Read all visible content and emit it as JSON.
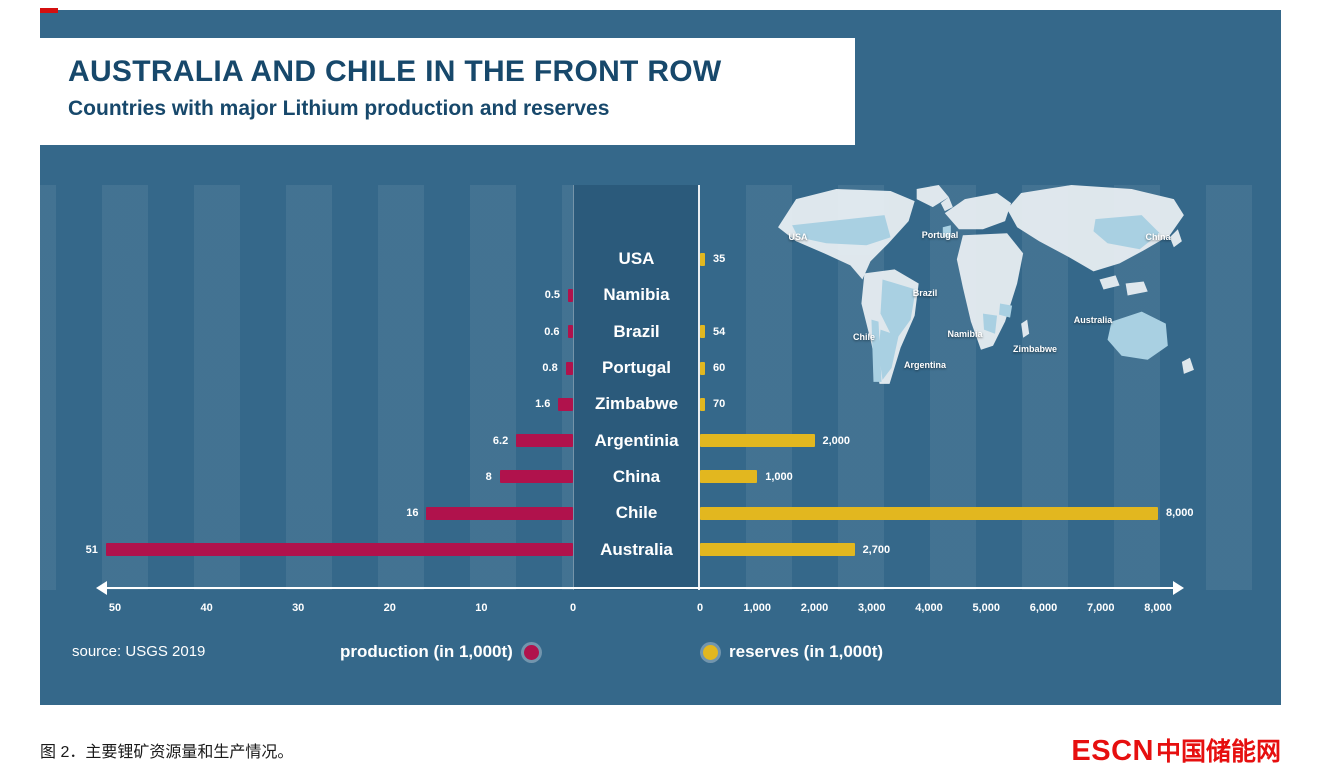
{
  "colors": {
    "panel_bg": "#35688a",
    "title_text": "#17486b",
    "production": "#b0124c",
    "reserves": "#e2b71f",
    "map_land": "#e9eff3",
    "map_highlight": "#a9d0e2",
    "logo_red": "#e60f0f"
  },
  "header": {
    "title": "AUSTRALIA AND CHILE IN THE FRONT ROW",
    "subtitle": "Countries with major Lithium production and reserves"
  },
  "chart_data": {
    "type": "bar",
    "variant": "bidirectional-horizontal",
    "categories": [
      "USA",
      "Namibia",
      "Brazil",
      "Portugal",
      "Zimbabwe",
      "Argentinia",
      "China",
      "Chile",
      "Australia"
    ],
    "series": [
      {
        "name": "production (in 1,000t)",
        "side": "left",
        "color": "#b0124c",
        "values": [
          null,
          0.5,
          0.6,
          0.8,
          1.6,
          6.2,
          8,
          16,
          51
        ],
        "value_labels": [
          "",
          "0.5",
          "0.6",
          "0.8",
          "1.6",
          "6.2",
          "8",
          "16",
          "51"
        ],
        "axis_max": 50,
        "axis_ticks": [
          "50",
          "40",
          "30",
          "20",
          "10",
          "0"
        ]
      },
      {
        "name": "reserves (in 1,000t)",
        "side": "right",
        "color": "#e2b71f",
        "values": [
          35,
          null,
          54,
          60,
          70,
          2000,
          1000,
          8000,
          2700
        ],
        "value_labels": [
          "35",
          "",
          "54",
          "60",
          "70",
          "2,000",
          "1,000",
          "8,000",
          "2,700"
        ],
        "axis_max": 8000,
        "axis_ticks": [
          "0",
          "1,000",
          "2,000",
          "3,000",
          "4,000",
          "5,000",
          "6,000",
          "7,000",
          "8,000"
        ]
      }
    ],
    "grid": false,
    "legend_position": "bottom",
    "source": "source: USGS 2019",
    "legend": [
      {
        "label": "production (in 1,000t)",
        "color": "#b0124c"
      },
      {
        "label": "reserves (in 1,000t)",
        "color": "#e2b71f"
      }
    ]
  },
  "map": {
    "labels": [
      "USA",
      "Portugal",
      "China",
      "Brazil",
      "Chile",
      "Namibia",
      "Zimbabwe",
      "Argentina",
      "Australia"
    ]
  },
  "caption": {
    "text": "图 2．主要锂矿资源量和生产情况。",
    "logo_escn": "ESCN",
    "logo_cn": "中国储能网"
  }
}
